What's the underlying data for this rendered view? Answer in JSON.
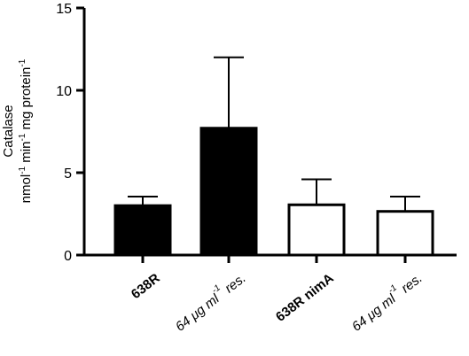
{
  "chart_data": {
    "type": "bar",
    "ylabel_line1": "Catalase",
    "ylabel_line2": "nmol",
    "ylabel_line2_sup1": "-1",
    "ylabel_line2_mid": " min",
    "ylabel_line2_sup2": "-1",
    "ylabel_line2_tail": " mg protein",
    "ylabel_line2_sup3": "-1",
    "ylim": [
      0,
      15
    ],
    "yticks": [
      "0",
      "5",
      "10",
      "15"
    ],
    "grid": false,
    "categories": [
      {
        "label": "638R",
        "style": "bold",
        "fill": "#000000",
        "value": 3.0,
        "error": 0.55
      },
      {
        "label": "64 μg ml",
        "sup": "-1",
        "tail": " res.",
        "style": "italic",
        "fill": "#000000",
        "value": 7.7,
        "error": 4.3
      },
      {
        "label": "638R nimA",
        "style": "bold",
        "fill": "#ffffff",
        "value": 3.05,
        "error": 1.55
      },
      {
        "label": "64 μg ml",
        "sup": "-1",
        "tail": " res.",
        "style": "italic",
        "fill": "#ffffff",
        "value": 2.65,
        "error": 0.9
      }
    ]
  }
}
